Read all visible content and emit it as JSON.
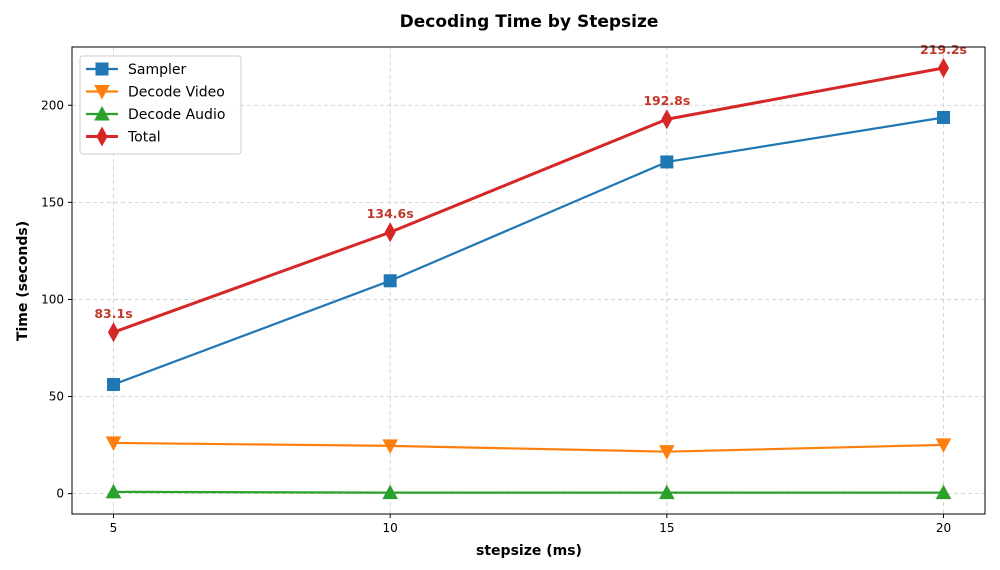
{
  "chart_data": {
    "type": "line",
    "title": "Decoding Time by Stepsize",
    "xlabel": "stepsize (ms)",
    "ylabel": "Time (seconds)",
    "x": [
      5,
      10,
      15,
      20
    ],
    "x_ticks": [
      "5",
      "10",
      "15",
      "20"
    ],
    "y_ticks": [
      "0",
      "50",
      "100",
      "150",
      "200"
    ],
    "xlim": [
      4.25,
      20.75
    ],
    "ylim": [
      -10.5,
      230
    ],
    "grid": true,
    "legend_position": "top-left",
    "series": [
      {
        "name": "Sampler",
        "values": [
          56.2,
          109.6,
          170.8,
          193.7
        ],
        "color": "#1f77b4",
        "marker": "square"
      },
      {
        "name": "Decode Video",
        "values": [
          26.1,
          24.6,
          21.6,
          25.1
        ],
        "color": "#ff7f0e",
        "marker": "triangle-down"
      },
      {
        "name": "Decode Audio",
        "values": [
          0.9,
          0.5,
          0.5,
          0.5
        ],
        "color": "#2ca02c",
        "marker": "triangle-up"
      },
      {
        "name": "Total",
        "values": [
          83.1,
          134.6,
          192.8,
          219.2
        ],
        "color": "#d62728",
        "marker": "thin-diamond"
      }
    ],
    "annotations": [
      {
        "x": 5,
        "y": 83.1,
        "text": "83.1s"
      },
      {
        "x": 10,
        "y": 134.6,
        "text": "134.6s"
      },
      {
        "x": 15,
        "y": 192.8,
        "text": "192.8s"
      },
      {
        "x": 20,
        "y": 219.2,
        "text": "219.2s"
      }
    ],
    "annotation_color": "#c0392b"
  }
}
